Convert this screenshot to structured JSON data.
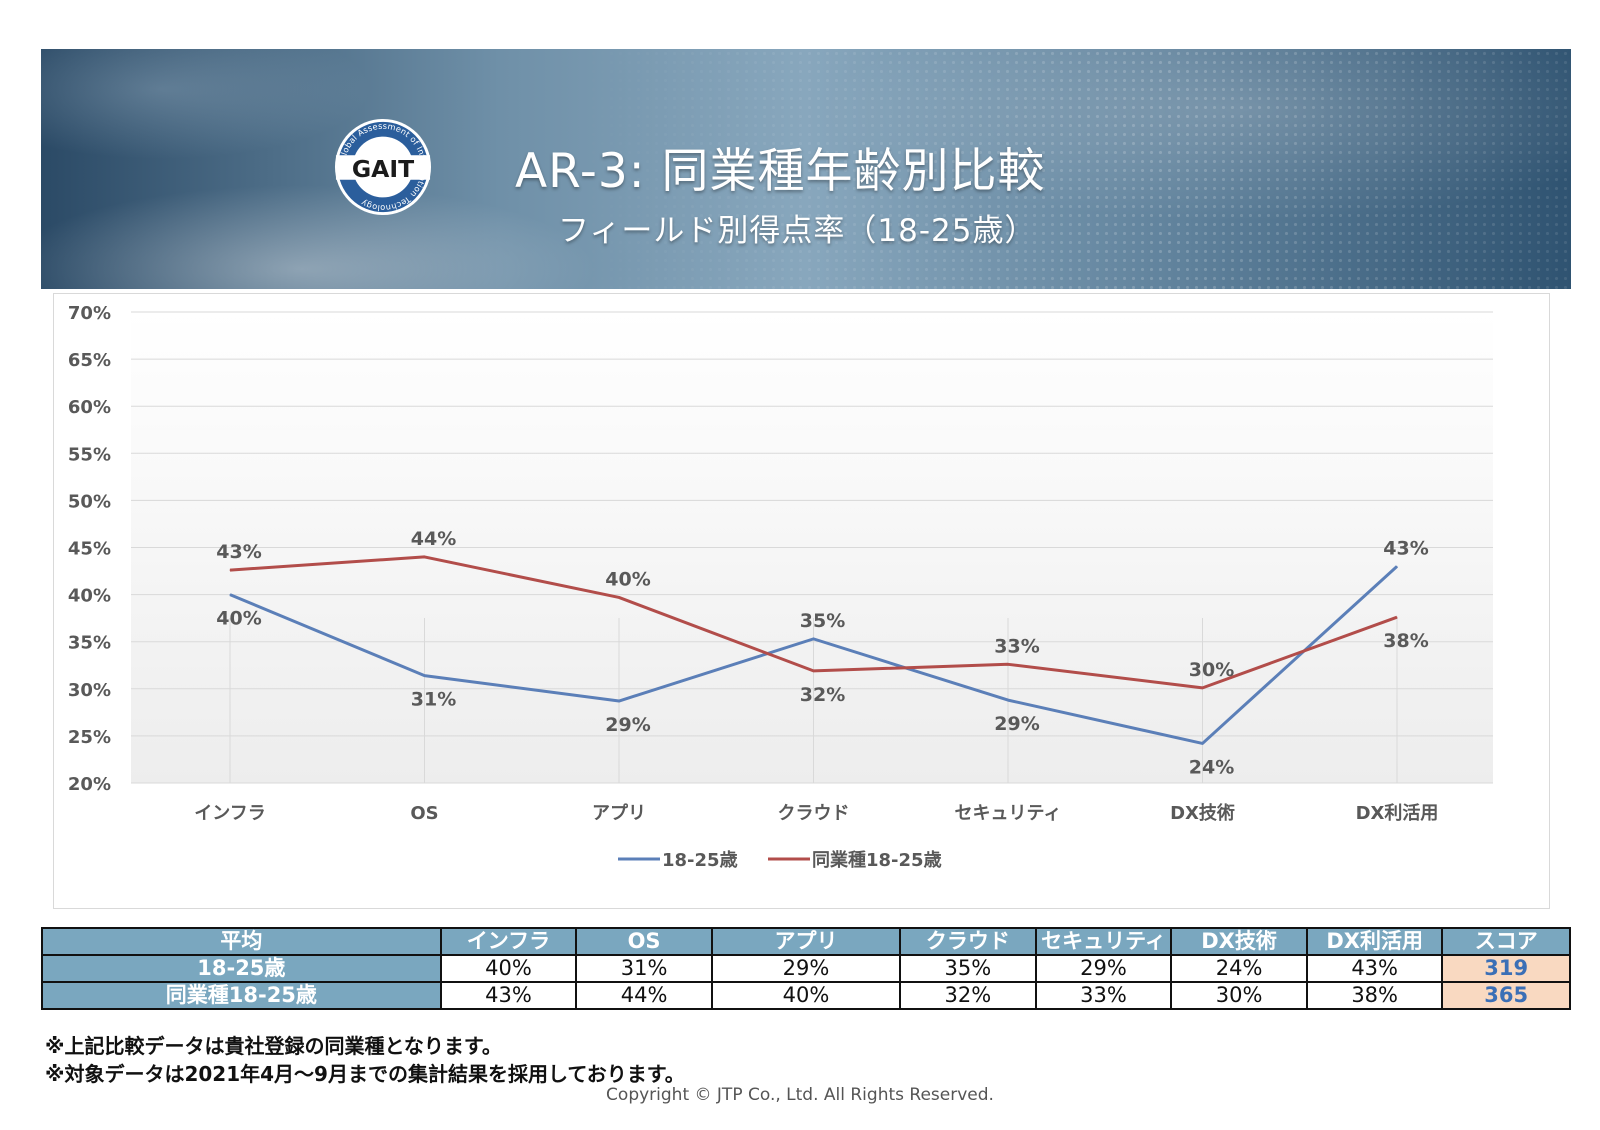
{
  "header": {
    "logo_text": "GAIT",
    "logo_ring_text": "Global Assessment of Information Technology",
    "title": "AR-3: 同業種年齢別比較",
    "subtitle": "フィールド別得点率（18-25歳）"
  },
  "colors": {
    "series1": "#5b7fb8",
    "series2": "#b24d4a",
    "table_header": "#7aa7bf",
    "score_bg": "#f9d9c1",
    "score_text": "#3b6fb6"
  },
  "chart_data": {
    "type": "line",
    "title": "",
    "xlabel": "",
    "ylabel": "",
    "categories": [
      "インフラ",
      "OS",
      "アプリ",
      "クラウド",
      "セキュリティ",
      "DX技術",
      "DX利活用"
    ],
    "y_ticks": [
      "70%",
      "65%",
      "60%",
      "55%",
      "50%",
      "45%",
      "40%",
      "35%",
      "30%",
      "25%",
      "20%"
    ],
    "ylim": [
      20,
      70
    ],
    "grid": true,
    "legend_position": "bottom",
    "series": [
      {
        "name": "18-25歳",
        "values": [
          40,
          31.4,
          28.7,
          35.3,
          28.8,
          24.2,
          43
        ],
        "labels": [
          "40%",
          "31%",
          "29%",
          "35%",
          "29%",
          "24%",
          "43%"
        ]
      },
      {
        "name": "同業種18-25歳",
        "values": [
          42.6,
          44,
          39.7,
          31.9,
          32.6,
          30.1,
          37.6
        ],
        "labels": [
          "43%",
          "44%",
          "40%",
          "32%",
          "33%",
          "30%",
          "38%"
        ]
      }
    ]
  },
  "table": {
    "headers": [
      "平均",
      "インフラ",
      "OS",
      "アプリ",
      "クラウド",
      "セキュリティ",
      "DX技術",
      "DX利活用",
      "スコア"
    ],
    "rows": [
      {
        "label": "18-25歳",
        "cells": [
          "40%",
          "31%",
          "29%",
          "35%",
          "29%",
          "24%",
          "43%"
        ],
        "score": "319"
      },
      {
        "label": "同業種18-25歳",
        "cells": [
          "43%",
          "44%",
          "40%",
          "32%",
          "33%",
          "30%",
          "38%"
        ],
        "score": "365"
      }
    ]
  },
  "notes": [
    "※上記比較データは貴社登録の同業種となります。",
    "※対象データは2021年4月～9月までの集計結果を採用しております。"
  ],
  "copyright": "Copyright © JTP Co., Ltd. All Rights Reserved."
}
